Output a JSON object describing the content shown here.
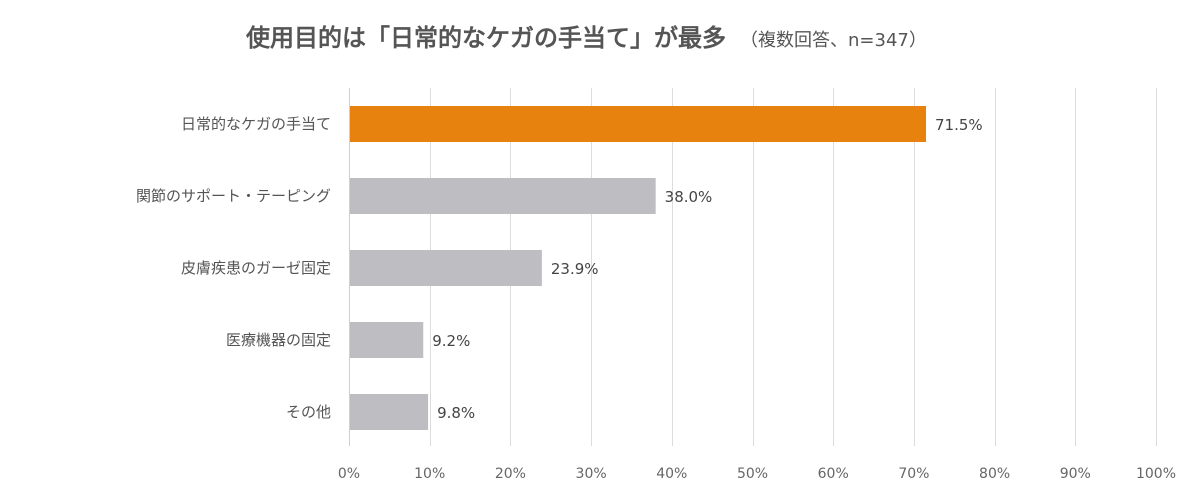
{
  "chart_data": {
    "type": "bar",
    "orientation": "horizontal",
    "title": "使用目的は「日常的なケガの手当て」が最多",
    "subtitle": "（複数回答、n=347）",
    "categories": [
      "日常的なケガの手当て",
      "関節のサポート・テーピング",
      "皮膚疾患のガーゼ固定",
      "医療機器の固定",
      "その他"
    ],
    "values": [
      71.5,
      38.0,
      23.9,
      9.2,
      9.8
    ],
    "value_labels": [
      "71.5%",
      "38.0%",
      "23.9%",
      "9.2%",
      "9.8%"
    ],
    "xlim": [
      0,
      100
    ],
    "x_ticks": [
      0,
      10,
      20,
      30,
      40,
      50,
      60,
      70,
      80,
      90,
      100
    ],
    "x_tick_labels": [
      "0%",
      "10%",
      "20%",
      "30%",
      "40%",
      "50%",
      "60%",
      "70%",
      "80%",
      "90%",
      "100%"
    ],
    "grid": true,
    "legend": "none",
    "colors": {
      "highlight": "#E8820F",
      "default": "#BEBDC2"
    },
    "highlight_index": 0
  }
}
